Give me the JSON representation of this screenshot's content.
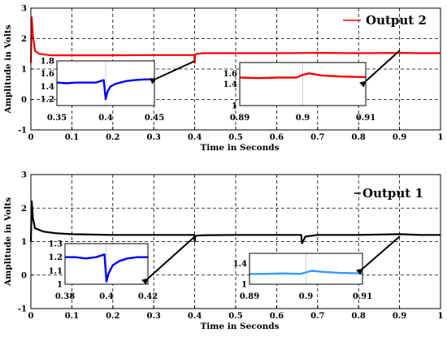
{
  "chart_data": [
    {
      "type": "line",
      "xlabel": "Time in Seconds",
      "ylabel": "Amplitude in Volts",
      "xlim": [
        0,
        1
      ],
      "ylim": [
        -1,
        3
      ],
      "x_ticks": [
        "0",
        "0.1",
        "0.2",
        "0.3",
        "0.4",
        "0.5",
        "0.6",
        "0.7",
        "0.8",
        "0.9",
        "1"
      ],
      "y_ticks": [
        "-1",
        "0",
        "1",
        "2",
        "3"
      ],
      "grid": true,
      "legend": "top-right",
      "series": [
        {
          "name": "Output 2",
          "color": "#ff0000",
          "x": [
            0,
            0.002,
            0.005,
            0.01,
            0.02,
            0.05,
            0.1,
            0.2,
            0.3,
            0.399,
            0.4,
            0.401,
            0.405,
            0.42,
            0.5,
            0.6,
            0.7,
            0.8,
            0.9,
            0.95,
            1.0
          ],
          "y": [
            1.2,
            2.7,
            2.1,
            1.6,
            1.5,
            1.45,
            1.45,
            1.45,
            1.46,
            1.46,
            1.2,
            1.48,
            1.5,
            1.52,
            1.52,
            1.52,
            1.53,
            1.52,
            1.53,
            1.52,
            1.52
          ]
        }
      ],
      "insets": [
        {
          "xlim": [
            0.35,
            0.45
          ],
          "ylim": [
            1.1,
            1.8
          ],
          "x_ticks": [
            "0.35",
            "0.4",
            "0.45"
          ],
          "y_ticks": [
            "1.2",
            "1.4",
            "1.6",
            "1.8"
          ],
          "color": "#0000ff",
          "x": [
            0.35,
            0.36,
            0.37,
            0.38,
            0.39,
            0.398,
            0.4,
            0.402,
            0.405,
            0.41,
            0.42,
            0.43,
            0.44,
            0.45
          ],
          "y": [
            1.46,
            1.45,
            1.46,
            1.46,
            1.46,
            1.5,
            1.2,
            1.32,
            1.4,
            1.44,
            1.48,
            1.5,
            1.51,
            1.51
          ]
        },
        {
          "xlim": [
            0.89,
            0.91
          ],
          "ylim": [
            1.0,
            1.8
          ],
          "x_ticks": [
            "0.89",
            "0.9",
            "0.91"
          ],
          "y_ticks": [
            "1",
            "1.4",
            "1.6"
          ],
          "color": "#ff0000",
          "x": [
            0.89,
            0.893,
            0.896,
            0.899,
            0.9,
            0.901,
            0.903,
            0.906,
            0.91
          ],
          "y": [
            1.52,
            1.51,
            1.52,
            1.52,
            1.57,
            1.6,
            1.56,
            1.54,
            1.53
          ]
        }
      ]
    },
    {
      "type": "line",
      "xlabel": "Time in Seconds",
      "ylabel": "Amplitude in Volts",
      "xlim": [
        0,
        1
      ],
      "ylim": [
        -1,
        3
      ],
      "x_ticks": [
        "0",
        "0.1",
        "0.2",
        "0.3",
        "0.4",
        "0.5",
        "0.6",
        "0.7",
        "0.8",
        "0.9",
        "1"
      ],
      "y_ticks": [
        "-1",
        "0",
        "1",
        "2",
        "3"
      ],
      "grid": true,
      "legend": "top-right",
      "series": [
        {
          "name": "Output 1",
          "color": "#000000",
          "x": [
            0,
            0.002,
            0.005,
            0.01,
            0.03,
            0.06,
            0.1,
            0.2,
            0.3,
            0.399,
            0.4,
            0.401,
            0.405,
            0.42,
            0.5,
            0.6,
            0.65,
            0.66,
            0.662,
            0.67,
            0.7,
            0.8,
            0.9,
            0.95,
            1.0
          ],
          "y": [
            1.0,
            2.2,
            1.7,
            1.4,
            1.3,
            1.25,
            1.22,
            1.2,
            1.2,
            1.2,
            1.0,
            1.14,
            1.18,
            1.19,
            1.2,
            1.2,
            1.2,
            1.2,
            0.95,
            1.15,
            1.2,
            1.2,
            1.22,
            1.2,
            1.2
          ]
        }
      ],
      "insets": [
        {
          "xlim": [
            0.38,
            0.42
          ],
          "ylim": [
            1.0,
            1.3
          ],
          "x_ticks": [
            "0.38",
            "0.4",
            "0.42"
          ],
          "y_ticks": [
            "1",
            "1.1",
            "1.2",
            "1.3"
          ],
          "color": "#0000ff",
          "x": [
            0.38,
            0.385,
            0.39,
            0.395,
            0.399,
            0.4,
            0.401,
            0.403,
            0.406,
            0.41,
            0.415,
            0.42
          ],
          "y": [
            1.2,
            1.2,
            1.19,
            1.2,
            1.22,
            1.02,
            1.08,
            1.14,
            1.17,
            1.19,
            1.2,
            1.2
          ]
        },
        {
          "xlim": [
            0.89,
            0.91
          ],
          "ylim": [
            1.0,
            1.6
          ],
          "x_ticks": [
            "0.89",
            "0.9",
            "0.91"
          ],
          "y_ticks": [
            "1",
            "1.4"
          ],
          "color": "#3399ff",
          "x": [
            0.89,
            0.893,
            0.896,
            0.899,
            0.9,
            0.901,
            0.903,
            0.906,
            0.91
          ],
          "y": [
            1.2,
            1.2,
            1.21,
            1.2,
            1.23,
            1.26,
            1.24,
            1.22,
            1.21
          ]
        }
      ]
    }
  ]
}
